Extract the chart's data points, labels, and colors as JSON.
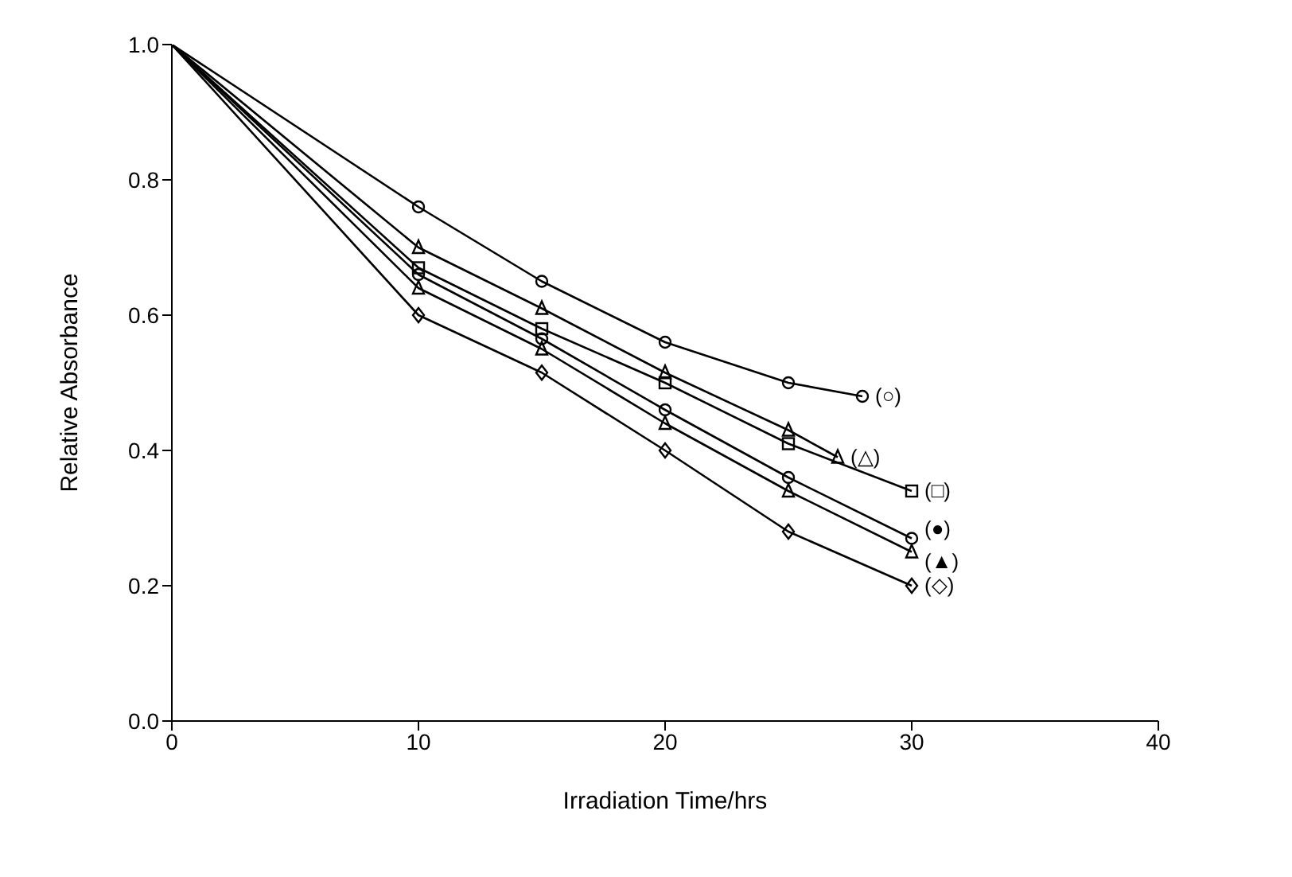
{
  "chart_data": {
    "type": "line",
    "xlabel": "Irradiation Time/hrs",
    "ylabel": "Relative Absorbance",
    "xlim": [
      0,
      40
    ],
    "xticks": [
      0,
      10,
      20,
      30,
      40
    ],
    "ylim": [
      0,
      1
    ],
    "yticks": [
      {
        "value": 0,
        "label": "0.0"
      },
      {
        "value": 0.2,
        "label": "0.2"
      },
      {
        "value": 0.4,
        "label": "0.4"
      },
      {
        "value": 0.6,
        "label": "0.6"
      },
      {
        "value": 0.8,
        "label": "0.8"
      },
      {
        "value": 1,
        "label": "1.0"
      }
    ],
    "grid": false,
    "legend": false,
    "line_style": "solid",
    "series": [
      {
        "name": "(○)",
        "color": "#000000",
        "marker": "circle",
        "x": [
          0,
          10,
          15,
          20,
          25,
          28
        ],
        "values": [
          1.0,
          0.76,
          0.65,
          0.56,
          0.5,
          0.48
        ]
      },
      {
        "name": "(△)",
        "color": "#000000",
        "marker": "triangle",
        "x": [
          0,
          10,
          15,
          20,
          25,
          27
        ],
        "values": [
          1.0,
          0.7,
          0.61,
          0.515,
          0.43,
          0.39
        ]
      },
      {
        "name": "(□)",
        "color": "#000000",
        "marker": "square",
        "x": [
          0,
          10,
          15,
          20,
          25,
          30
        ],
        "values": [
          1.0,
          0.67,
          0.58,
          0.5,
          0.41,
          0.34
        ]
      },
      {
        "name": "(●)",
        "color": "#000000",
        "marker": "circle",
        "x": [
          0,
          10,
          15,
          20,
          25,
          30
        ],
        "values": [
          1.0,
          0.66,
          0.565,
          0.46,
          0.36,
          0.27
        ]
      },
      {
        "name": "(▲)",
        "color": "#000000",
        "marker": "triangle",
        "x": [
          0,
          10,
          15,
          20,
          25,
          30
        ],
        "values": [
          1.0,
          0.64,
          0.55,
          0.44,
          0.34,
          0.25
        ]
      },
      {
        "name": "(◇)",
        "color": "#000000",
        "marker": "diamond",
        "x": [
          0,
          10,
          15,
          20,
          25,
          30
        ],
        "values": [
          1.0,
          0.6,
          0.515,
          0.4,
          0.28,
          0.2
        ]
      }
    ]
  }
}
